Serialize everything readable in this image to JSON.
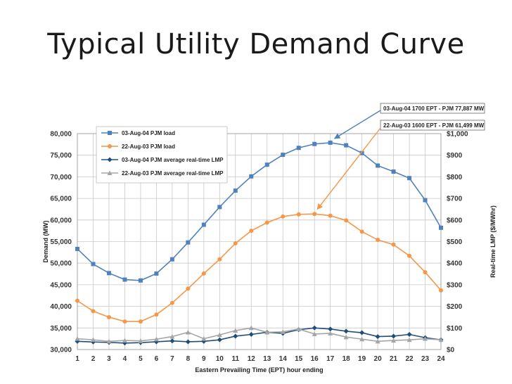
{
  "slide": {
    "title": "Typical Utility Demand Curve"
  },
  "colors": {
    "blue": "#4f81bd",
    "orange": "#f79646",
    "navy": "#1f4e79",
    "gray": "#a5a5a5",
    "grid": "#c8c8c8",
    "arrow_blue": "#4f81bd",
    "arrow_orange": "#f79646"
  },
  "chart_data": {
    "type": "line",
    "xlabel": "Eastern Prevailing Time (EPT) hour ending",
    "ylabel": "Demand (MW)",
    "y2label": "Real-time LMP ($/MWhr)",
    "categories": [
      "1",
      "2",
      "3",
      "4",
      "5",
      "6",
      "7",
      "8",
      "9",
      "10",
      "11",
      "12",
      "13",
      "14",
      "15",
      "16",
      "17",
      "18",
      "19",
      "20",
      "21",
      "22",
      "23",
      "24"
    ],
    "ylim": [
      30000,
      80000
    ],
    "y_ticks": [
      "30,000",
      "35,000",
      "40,000",
      "45,000",
      "50,000",
      "55,000",
      "60,000",
      "65,000",
      "70,000",
      "75,000",
      "80,000"
    ],
    "y2lim": [
      0,
      1000
    ],
    "y2_ticks": [
      "$0",
      "$100",
      "$200",
      "$300",
      "$400",
      "$500",
      "$600",
      "$700",
      "$800",
      "$900",
      "$1,000"
    ],
    "grid": true,
    "legend_position": "top-left",
    "series": [
      {
        "name": "03-Aug-04 PJM load",
        "axis": "left",
        "color": "#4f81bd",
        "marker": "square",
        "values": [
          53300,
          49800,
          47700,
          46200,
          46000,
          47600,
          50900,
          54800,
          58900,
          63000,
          66800,
          70100,
          72800,
          75100,
          76700,
          77600,
          77900,
          77300,
          75500,
          72600,
          71200,
          69700,
          64600,
          58200
        ]
      },
      {
        "name": "22-Aug-03 PJM load",
        "axis": "left",
        "color": "#f79646",
        "marker": "circle",
        "values": [
          41300,
          38900,
          37500,
          36500,
          36500,
          38100,
          40800,
          44100,
          47600,
          50900,
          54600,
          57500,
          59400,
          60800,
          61300,
          61400,
          61000,
          59900,
          57300,
          55400,
          54300,
          51700,
          47900,
          43700
        ]
      },
      {
        "name": "03-Aug-04 PJM average real-time LMP",
        "axis": "right",
        "color": "#1f4e79",
        "marker": "diamond",
        "values": [
          38,
          35,
          33,
          30,
          32,
          36,
          40,
          36,
          38,
          45,
          62,
          70,
          80,
          75,
          92,
          100,
          95,
          85,
          78,
          60,
          62,
          70,
          55,
          45
        ]
      },
      {
        "name": "22-Aug-03 PJM average real-time LMP",
        "axis": "right",
        "color": "#a5a5a5",
        "marker": "triangle",
        "values": [
          50,
          45,
          38,
          42,
          40,
          48,
          60,
          80,
          50,
          68,
          88,
          100,
          80,
          82,
          95,
          72,
          75,
          58,
          48,
          38,
          42,
          45,
          50,
          45
        ]
      }
    ],
    "annotations": [
      {
        "text": "03-Aug-04 1700 EPT - PJM 77,887 MW",
        "series": "03-Aug-04 PJM load",
        "x": "17",
        "y": 77887
      },
      {
        "text": "22-Aug-03 1600 EPT - PJM 61,499 MW",
        "series": "22-Aug-03 PJM load",
        "x": "16",
        "y": 61499
      }
    ]
  }
}
